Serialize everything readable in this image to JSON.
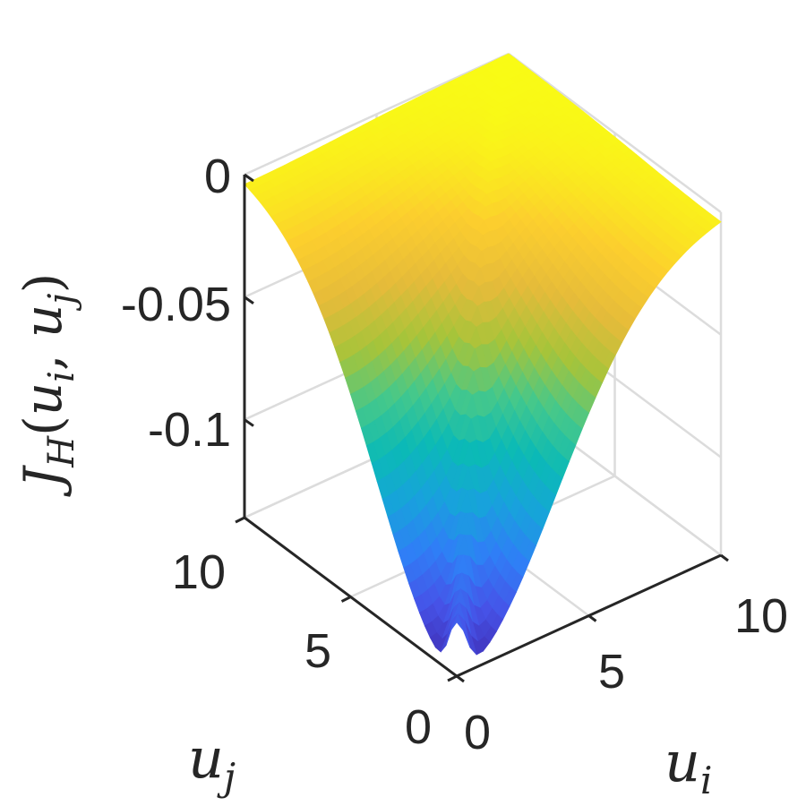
{
  "chart_data": {
    "type": "surface",
    "title": "",
    "xlabel": {
      "base": "u",
      "sub": "i"
    },
    "ylabel": {
      "base": "u",
      "sub": "j"
    },
    "zlabel": {
      "base": "J",
      "sub": "H",
      "args": [
        "u",
        "i",
        "u",
        "j"
      ]
    },
    "xlim": [
      0,
      10
    ],
    "ylim": [
      0,
      10
    ],
    "zlim": [
      -0.14,
      0
    ],
    "x_ticks": [
      "0",
      "5",
      "10"
    ],
    "y_ticks": [
      "0",
      "5",
      "10"
    ],
    "z_ticks": [
      "0",
      "-0.05",
      "-0.1"
    ],
    "z_tick_values": [
      0,
      -0.05,
      -0.1
    ],
    "x_tick_values": [
      0,
      5,
      10
    ],
    "y_tick_values": [
      0,
      5,
      10
    ],
    "grid": true,
    "colormap": "parula",
    "colormap_stops": [
      "#3e26a8",
      "#4653e8",
      "#2f7ff6",
      "#17a3db",
      "#0bbab6",
      "#45c88b",
      "#a6c43a",
      "#e5bb3a",
      "#fcce2e",
      "#f9fb15"
    ],
    "surface": {
      "description_values": {
        "minimum_value": -0.14,
        "minimum_at": [
          0,
          0
        ],
        "corner_value_far": 0,
        "side_edge_value": -0.01,
        "secondary_trough_value": -0.09
      }
    }
  }
}
